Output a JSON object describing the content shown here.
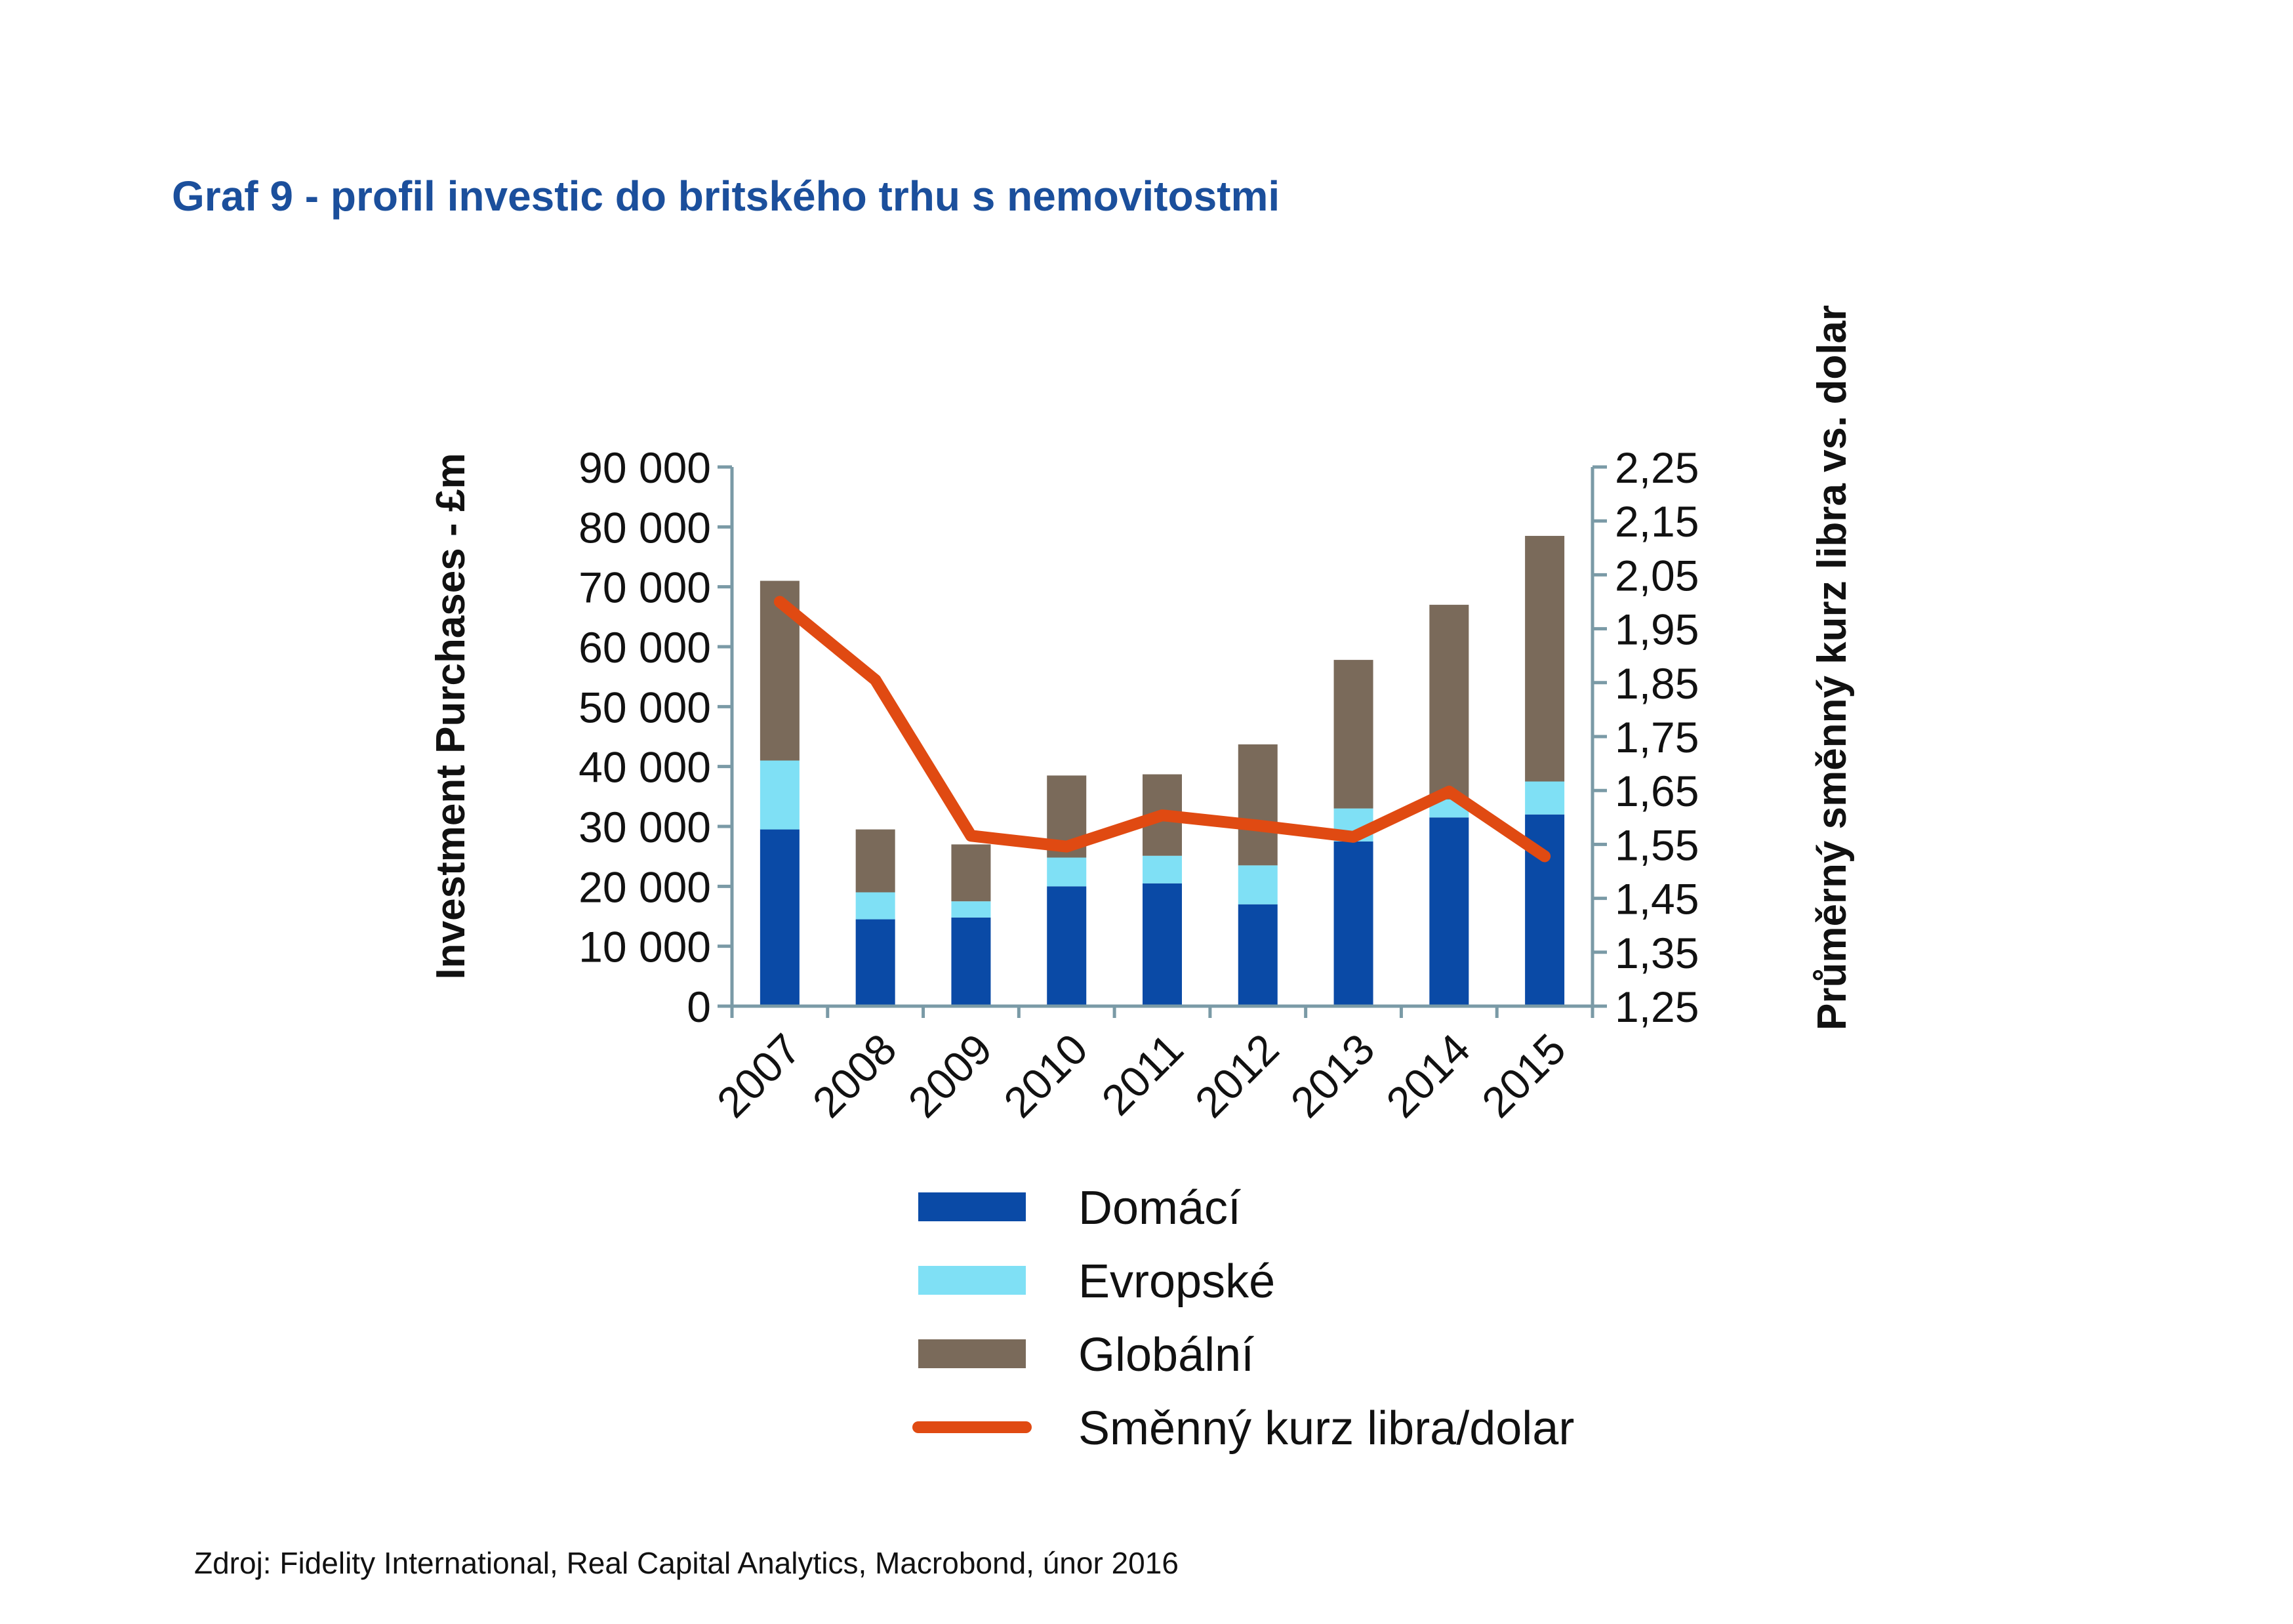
{
  "title": "Graf 9 - profil investic do britského trhu s nemovitostmi",
  "source": "Zdroj: Fidelity International, Real Capital Analytics, Macrobond, únor 2016",
  "chart_data": {
    "type": "bar",
    "stacked": true,
    "categories": [
      "2007",
      "2008",
      "2009",
      "2010",
      "2011",
      "2012",
      "2013",
      "2014",
      "2015"
    ],
    "series": [
      {
        "name": "Domácí",
        "color": "#0a4aa6",
        "values": [
          29500,
          14500,
          14800,
          20000,
          20500,
          17000,
          27500,
          31500,
          32000
        ]
      },
      {
        "name": "Evropské",
        "color": "#7fe0f5",
        "values": [
          11500,
          4500,
          2700,
          4800,
          4600,
          6500,
          5500,
          3000,
          5500
        ]
      },
      {
        "name": "Globální",
        "color": "#7a6a5a",
        "values": [
          30000,
          10500,
          9500,
          13700,
          13600,
          20200,
          24800,
          32500,
          41000
        ]
      }
    ],
    "line_series": {
      "name": "Směnný kurz libra/dolar",
      "color": "#e04a12",
      "axis": "right",
      "values": [
        2.0,
        1.855,
        1.566,
        1.546,
        1.604,
        1.585,
        1.564,
        1.648,
        1.528
      ]
    },
    "ylabel": "Investment Purchases - £m",
    "y2label": "Průměrný směnný kurz libra vs. dolar",
    "ylim": [
      0,
      90000
    ],
    "y2lim": [
      1.25,
      2.25
    ],
    "yticks": [
      "0",
      "10 000",
      "20 000",
      "30 000",
      "40 000",
      "50 000",
      "60 000",
      "70 000",
      "80 000",
      "90 000"
    ],
    "y2ticks": [
      "1,25",
      "1,35",
      "1,45",
      "1,55",
      "1,65",
      "1,75",
      "1,85",
      "1,95",
      "2,05",
      "2,15",
      "2,25"
    ],
    "legend": [
      {
        "label": "Domácí",
        "kind": "bar",
        "color": "#0a4aa6"
      },
      {
        "label": "Evropské",
        "kind": "bar",
        "color": "#7fe0f5"
      },
      {
        "label": "Globální",
        "kind": "bar",
        "color": "#7a6a5a"
      },
      {
        "label": "Směnný kurz libra/dolar",
        "kind": "line",
        "color": "#e04a12"
      }
    ],
    "legend_position": "bottom",
    "grid": false
  }
}
